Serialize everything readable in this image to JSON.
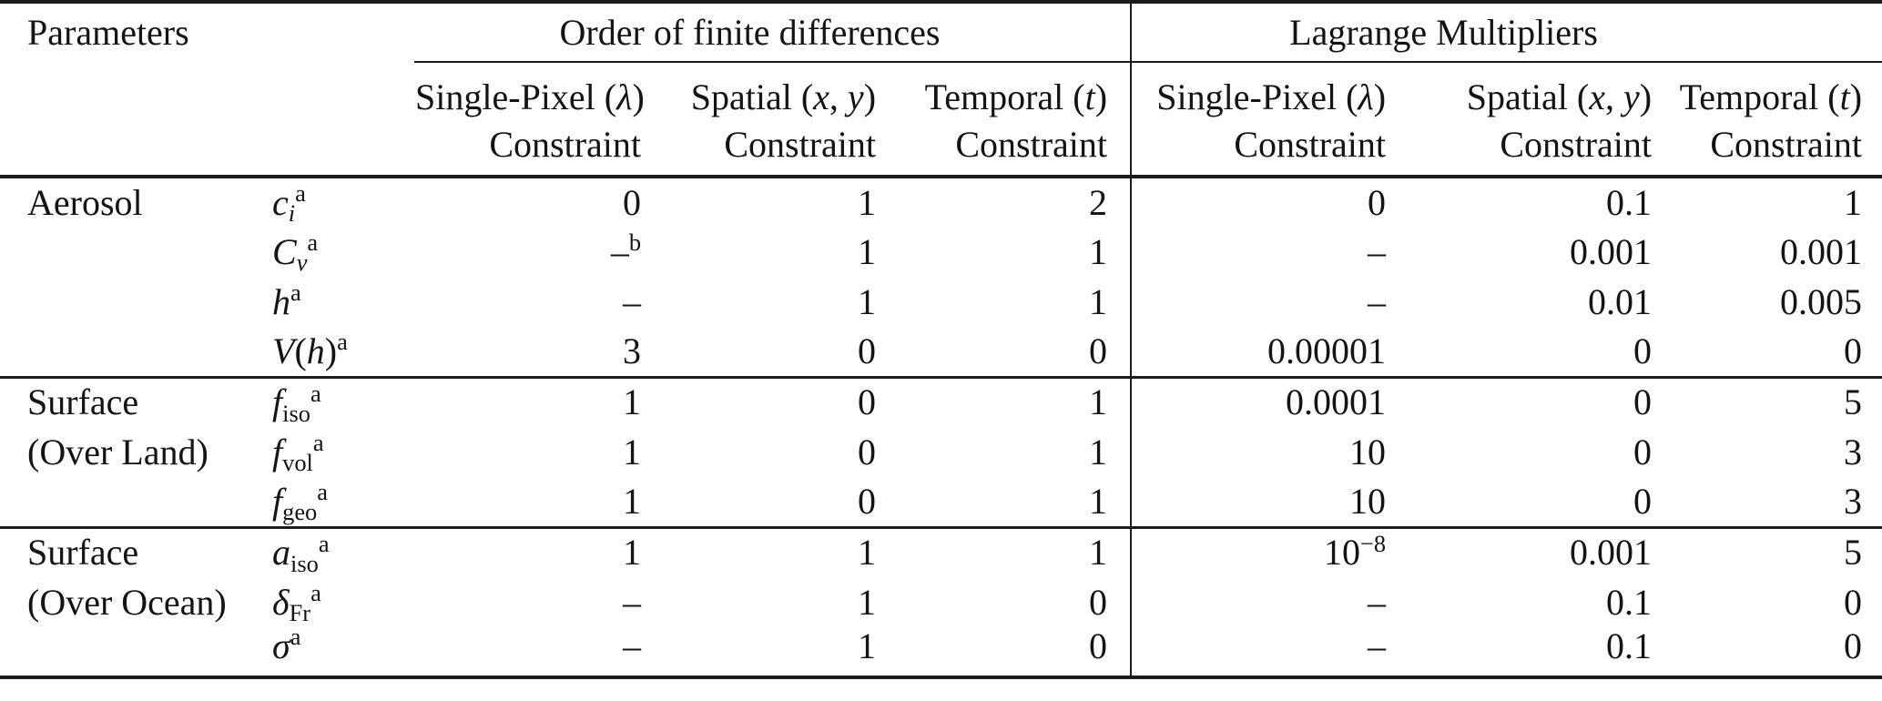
{
  "page": {
    "background": "#ffffff",
    "text_color": "#141414",
    "rule_color": "#1b1b1b"
  },
  "table": {
    "corner_header": "Parameters",
    "column_groups": [
      {
        "label": "Order of finite differences",
        "span": 3
      },
      {
        "label": "Lagrange Multipliers",
        "span": 3
      }
    ],
    "subcolumn_line2": "Constraint",
    "subcolumns": [
      {
        "group": "order",
        "line1": [
          [
            "r",
            "Single-Pixel ("
          ],
          [
            "i",
            "λ"
          ],
          [
            "r",
            ")"
          ]
        ]
      },
      {
        "group": "order",
        "line1": [
          [
            "r",
            "Spatial ("
          ],
          [
            "i",
            "x"
          ],
          [
            "r",
            ", "
          ],
          [
            "i",
            "y"
          ],
          [
            "r",
            ")"
          ]
        ]
      },
      {
        "group": "order",
        "line1": [
          [
            "r",
            "Temporal ("
          ],
          [
            "i",
            "t"
          ],
          [
            "r",
            ")"
          ]
        ]
      },
      {
        "group": "lagrange",
        "line1": [
          [
            "r",
            "Single-Pixel ("
          ],
          [
            "i",
            "λ"
          ],
          [
            "r",
            ")"
          ]
        ]
      },
      {
        "group": "lagrange",
        "line1": [
          [
            "r",
            "Spatial ("
          ],
          [
            "i",
            "x"
          ],
          [
            "r",
            ", "
          ],
          [
            "i",
            "y"
          ],
          [
            "r",
            ")"
          ]
        ]
      },
      {
        "group": "lagrange",
        "line1": [
          [
            "r",
            "Temporal ("
          ],
          [
            "i",
            "t"
          ],
          [
            "r",
            ")"
          ]
        ]
      }
    ],
    "sections": [
      {
        "label_lines": [
          "Aerosol"
        ],
        "rows": [
          {
            "param": [
              [
                "i",
                "c"
              ],
              [
                "subi",
                "i"
              ],
              [
                "sup",
                "a"
              ]
            ],
            "values": [
              "0",
              "1",
              "2",
              "0",
              "0.1",
              "1"
            ]
          },
          {
            "param": [
              [
                "i",
                "C"
              ],
              [
                "subi",
                "v"
              ],
              [
                "sup",
                "a"
              ]
            ],
            "values": [
              [
                [
                  "r",
                  "–"
                ],
                [
                  "sup",
                  "b"
                ]
              ],
              "1",
              "1",
              "–",
              "0.001",
              "0.001"
            ]
          },
          {
            "param": [
              [
                "i",
                "h"
              ],
              [
                "sup",
                "a"
              ]
            ],
            "values": [
              "–",
              "1",
              "1",
              "–",
              "0.01",
              "0.005"
            ]
          },
          {
            "param": [
              [
                "i",
                "V"
              ],
              [
                "r",
                "("
              ],
              [
                "i",
                "h"
              ],
              [
                "r",
                ")"
              ],
              [
                "sup",
                "a"
              ]
            ],
            "values": [
              "3",
              "0",
              "0",
              "0.00001",
              "0",
              "0"
            ]
          }
        ]
      },
      {
        "label_lines": [
          "Surface",
          "(Over Land)"
        ],
        "rows": [
          {
            "param": [
              [
                "i",
                "f"
              ],
              [
                "sub",
                "iso"
              ],
              [
                "sup",
                "a"
              ]
            ],
            "values": [
              "1",
              "0",
              "1",
              "0.0001",
              "0",
              "5"
            ]
          },
          {
            "param": [
              [
                "i",
                "f"
              ],
              [
                "sub",
                "vol"
              ],
              [
                "sup",
                "a"
              ]
            ],
            "values": [
              "1",
              "0",
              "1",
              "10",
              "0",
              "3"
            ]
          },
          {
            "param": [
              [
                "i",
                "f"
              ],
              [
                "sub",
                "geo"
              ],
              [
                "sup",
                "a"
              ]
            ],
            "values": [
              "1",
              "0",
              "1",
              "10",
              "0",
              "3"
            ]
          }
        ]
      },
      {
        "label_lines": [
          "Surface",
          "(Over Ocean)"
        ],
        "rows": [
          {
            "param": [
              [
                "i",
                "a"
              ],
              [
                "sub",
                "iso"
              ],
              [
                "sup",
                "a"
              ]
            ],
            "values": [
              "1",
              "1",
              "1",
              [
                [
                  "r",
                  "10"
                ],
                [
                  "sup",
                  "−8"
                ]
              ],
              "0.001",
              "5"
            ]
          },
          {
            "param": [
              [
                "i",
                "δ"
              ],
              [
                "sub",
                "Fr"
              ],
              [
                "sup",
                "a"
              ]
            ],
            "values": [
              "–",
              "1",
              "0",
              "–",
              "0.1",
              "0"
            ]
          },
          {
            "param": [
              [
                "i",
                "σ"
              ],
              [
                "sup",
                "a"
              ]
            ],
            "values": [
              "–",
              "1",
              "0",
              "–",
              "0.1",
              "0"
            ]
          }
        ]
      }
    ]
  }
}
